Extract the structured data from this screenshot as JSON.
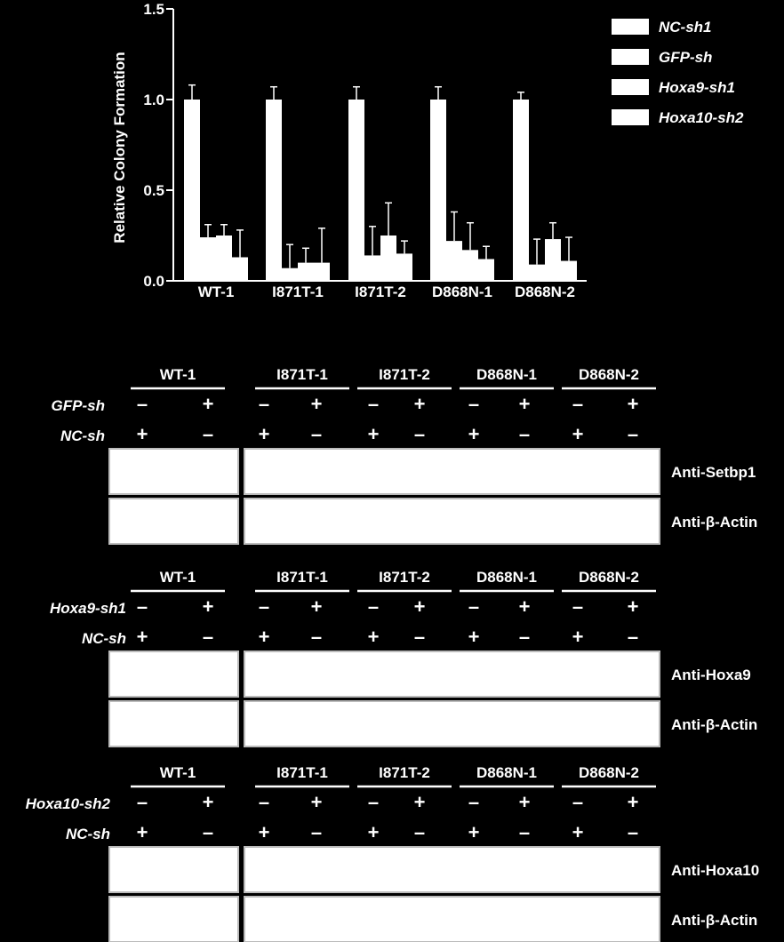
{
  "chart_data": {
    "type": "bar",
    "ylabel": "Relative Colony Formation",
    "ylim": [
      0,
      1.5
    ],
    "yticks": [
      "0.0",
      "0.5",
      "1.0",
      "1.5"
    ],
    "categories": [
      "WT-1",
      "I871T-1",
      "I871T-2",
      "D868N-1",
      "D868N-2"
    ],
    "legend_position": "top-right",
    "series": [
      {
        "name": "NC-sh1",
        "values": [
          1.0,
          1.0,
          1.0,
          1.0,
          1.0
        ],
        "errors": [
          0.08,
          0.07,
          0.07,
          0.07,
          0.04
        ]
      },
      {
        "name": "GFP-sh",
        "values": [
          0.24,
          0.07,
          0.14,
          0.22,
          0.09
        ],
        "errors": [
          0.07,
          0.13,
          0.16,
          0.16,
          0.14
        ]
      },
      {
        "name": "Hoxa9-sh1",
        "values": [
          0.25,
          0.1,
          0.25,
          0.17,
          0.23
        ],
        "errors": [
          0.06,
          0.08,
          0.18,
          0.15,
          0.09
        ]
      },
      {
        "name": "Hoxa10-sh2",
        "values": [
          0.13,
          0.1,
          0.15,
          0.12,
          0.11
        ],
        "errors": [
          0.15,
          0.19,
          0.07,
          0.07,
          0.13
        ]
      }
    ]
  },
  "blot_panels": [
    {
      "groups": [
        "WT-1",
        "I871T-1",
        "I871T-2",
        "D868N-1",
        "D868N-2"
      ],
      "rows": [
        {
          "label": "GFP-sh",
          "signs": [
            "–",
            "+",
            "–",
            "+",
            "–",
            "+",
            "–",
            "+",
            "–",
            "+"
          ]
        },
        {
          "label": "NC-sh",
          "signs": [
            "+",
            "–",
            "+",
            "–",
            "+",
            "–",
            "+",
            "–",
            "+",
            "–"
          ]
        }
      ],
      "antibodies": [
        "Anti-Setbp1",
        "Anti-β-Actin"
      ]
    },
    {
      "groups": [
        "WT-1",
        "I871T-1",
        "I871T-2",
        "D868N-1",
        "D868N-2"
      ],
      "rows": [
        {
          "label": "Hoxa9-sh1",
          "signs": [
            "–",
            "+",
            "–",
            "+",
            "–",
            "+",
            "–",
            "+",
            "–",
            "+"
          ]
        },
        {
          "label": "NC-sh",
          "signs": [
            "+",
            "–",
            "+",
            "–",
            "+",
            "–",
            "+",
            "–",
            "+",
            "–"
          ]
        }
      ],
      "antibodies": [
        "Anti-Hoxa9",
        "Anti-β-Actin"
      ]
    },
    {
      "groups": [
        "WT-1",
        "I871T-1",
        "I871T-2",
        "D868N-1",
        "D868N-2"
      ],
      "rows": [
        {
          "label": "Hoxa10-sh2",
          "signs": [
            "–",
            "+",
            "–",
            "+",
            "–",
            "+",
            "–",
            "+",
            "–",
            "+"
          ]
        },
        {
          "label": "NC-sh",
          "signs": [
            "+",
            "–",
            "+",
            "–",
            "+",
            "–",
            "+",
            "–",
            "+",
            "–"
          ]
        }
      ],
      "antibodies": [
        "Anti-Hoxa10",
        "Anti-β-Actin"
      ]
    }
  ],
  "colors": {
    "background": "#000000",
    "foreground": "#ffffff"
  }
}
